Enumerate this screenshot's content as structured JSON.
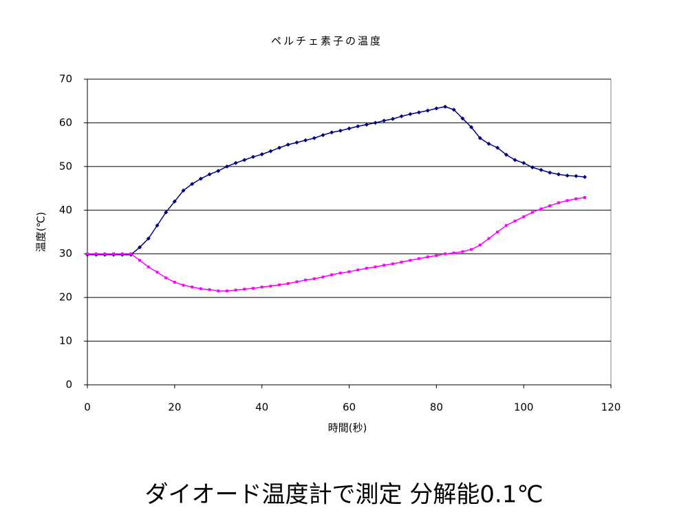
{
  "chart_data": {
    "type": "line",
    "title": "ペルチェ素子の温度",
    "x_label": "時間(秒)",
    "y_label": "温度(℃)",
    "caption": "ダイオード温度計で測定  分解能0.1℃",
    "x": [
      0,
      2,
      4,
      6,
      8,
      10,
      12,
      14,
      16,
      18,
      20,
      22,
      24,
      26,
      28,
      30,
      32,
      34,
      36,
      38,
      40,
      42,
      44,
      46,
      48,
      50,
      52,
      54,
      56,
      58,
      60,
      62,
      64,
      66,
      68,
      70,
      72,
      74,
      76,
      78,
      80,
      82,
      84,
      86,
      88,
      90,
      92,
      94,
      96,
      98,
      100,
      102,
      104,
      106,
      108,
      110,
      112,
      114
    ],
    "series": [
      {
        "color": "#000080",
        "marker": "diamond",
        "values": [
          29.8,
          29.8,
          29.8,
          29.8,
          29.8,
          29.8,
          31.5,
          33.5,
          36.5,
          39.5,
          42,
          44.5,
          46,
          47.2,
          48.2,
          49,
          50,
          50.8,
          51.5,
          52.2,
          52.8,
          53.5,
          54.3,
          55,
          55.5,
          56,
          56.5,
          57.2,
          57.8,
          58.2,
          58.7,
          59.2,
          59.6,
          60,
          60.5,
          60.9,
          61.5,
          62,
          62.4,
          62.8,
          63.3,
          63.7,
          63,
          61,
          59,
          56.5,
          55.2,
          54.3,
          52.7,
          51.5,
          50.8,
          49.8,
          49.2,
          48.6,
          48.2,
          47.9,
          47.8,
          47.6
        ]
      },
      {
        "color": "#ff00ff",
        "marker": "square",
        "values": [
          30,
          30,
          30,
          30,
          30,
          30,
          28.5,
          27,
          25.8,
          24.5,
          23.5,
          22.8,
          22.4,
          22,
          21.8,
          21.5,
          21.5,
          21.7,
          21.9,
          22.1,
          22.4,
          22.6,
          22.9,
          23.2,
          23.6,
          24,
          24.3,
          24.7,
          25.2,
          25.6,
          25.9,
          26.3,
          26.7,
          27,
          27.4,
          27.7,
          28.1,
          28.5,
          28.9,
          29.3,
          29.6,
          30,
          30.2,
          30.5,
          31,
          32,
          33.5,
          35,
          36.5,
          37.5,
          38.5,
          39.5,
          40.3,
          41,
          41.7,
          42.2,
          42.6,
          42.9
        ]
      }
    ],
    "xlim": [
      0,
      120
    ],
    "xticks": [
      0,
      20,
      40,
      60,
      80,
      100,
      120
    ],
    "ylim": [
      0,
      70
    ],
    "yticks": [
      0,
      10,
      20,
      30,
      40,
      50,
      60,
      70
    ],
    "grid": true
  }
}
